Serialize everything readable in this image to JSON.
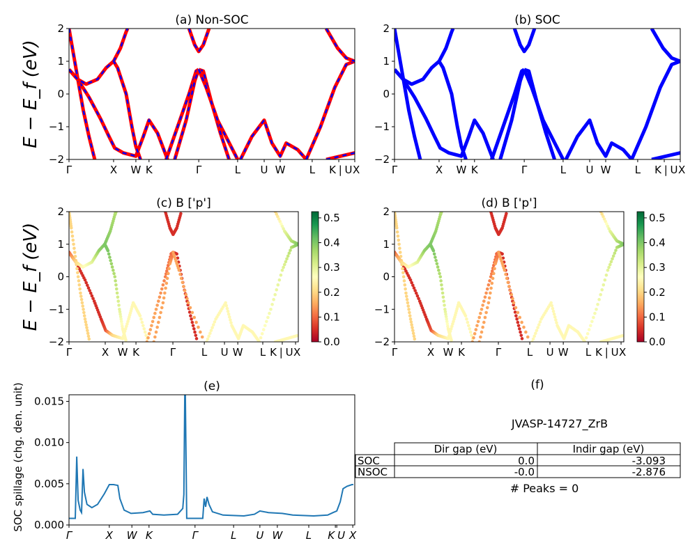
{
  "chart_data": [
    {
      "id": "a",
      "type": "line",
      "title": "(a) Non-SOC",
      "ylabel": "E − E_f (eV)",
      "ylim": [
        -2,
        2
      ],
      "yticks": [
        "−2",
        "−1",
        "0",
        "1",
        "2"
      ],
      "xticks": [
        "Γ",
        "X",
        "W",
        "K",
        "Γ",
        "L",
        "U",
        "W",
        "L",
        "K | U",
        "X"
      ],
      "colors": {
        "line": "#ff0000",
        "dash": "#0000ff"
      },
      "bands_ref": "bands"
    },
    {
      "id": "b",
      "type": "line",
      "title": "(b) SOC",
      "ylim": [
        -2,
        2
      ],
      "yticks": [
        "−2",
        "−1",
        "0",
        "1",
        "2"
      ],
      "xticks": [
        "Γ",
        "X",
        "W",
        "K",
        "Γ",
        "L",
        "U",
        "W",
        "L",
        "K | U",
        "X"
      ],
      "colors": {
        "line": "#0000ff"
      },
      "bands_ref": "bands"
    },
    {
      "id": "c",
      "type": "scatter",
      "title": "(c)  B ['p']",
      "ylabel": "E − E_f (eV)",
      "ylim": [
        -2,
        2
      ],
      "yticks": [
        "−2",
        "−1",
        "0",
        "1",
        "2"
      ],
      "xticks": [
        "Γ",
        "X",
        "W",
        "K",
        "Γ",
        "L",
        "U",
        "W",
        "L",
        "K | U",
        "X"
      ],
      "colormap": "RdYlGn",
      "colorbar": {
        "range": [
          0,
          0.525
        ],
        "ticks": [
          "0.0",
          "0.1",
          "0.2",
          "0.3",
          "0.4",
          "0.5"
        ]
      },
      "bands_ref": "bands"
    },
    {
      "id": "d",
      "type": "scatter",
      "title": "(d) B ['p']",
      "ylim": [
        -2,
        2
      ],
      "yticks": [
        "−2",
        "−1",
        "0",
        "1",
        "2"
      ],
      "xticks": [
        "Γ",
        "X",
        "W",
        "K",
        "Γ",
        "L",
        "U",
        "W",
        "L",
        "K | U",
        "X"
      ],
      "colormap": "RdYlGn",
      "colorbar": {
        "range": [
          0,
          0.525
        ],
        "ticks": [
          "0.0",
          "0.1",
          "0.2",
          "0.3",
          "0.4",
          "0.5"
        ]
      },
      "bands_ref": "bands"
    },
    {
      "id": "e",
      "type": "line",
      "title": "(e)",
      "ylabel": "SOC spillage (chg. den. unit)",
      "ylim": [
        0,
        0.0158
      ],
      "yticks": [
        "0.000",
        "0.005",
        "0.010",
        "0.015"
      ],
      "xticks": [
        "Γ",
        "X",
        "W",
        "K",
        "Γ",
        "L",
        "U",
        "W",
        "L",
        "K",
        "U",
        "X"
      ],
      "colors": {
        "line": "#1f77b4"
      },
      "x": [
        0,
        0.022,
        0.027,
        0.032,
        0.039,
        0.044,
        0.049,
        0.054,
        0.063,
        0.08,
        0.1,
        0.124,
        0.141,
        0.156,
        0.171,
        0.178,
        0.193,
        0.217,
        0.259,
        0.283,
        0.293,
        0.332,
        0.38,
        0.398,
        0.402,
        0.405,
        0.407,
        0.412,
        0.468,
        0.473,
        0.478,
        0.483,
        0.49,
        0.502,
        0.539,
        0.612,
        0.649,
        0.668,
        0.698,
        0.746,
        0.783,
        0.856,
        0.905,
        0.924,
        0.937,
        0.949,
        0.959,
        0.973,
        0.99,
        0.995
      ],
      "y": [
        0.0008,
        0.0008,
        0.0083,
        0.003,
        0.0018,
        0.0015,
        0.0068,
        0.004,
        0.0025,
        0.0021,
        0.0025,
        0.0038,
        0.0049,
        0.0049,
        0.0048,
        0.0032,
        0.0018,
        0.0014,
        0.0015,
        0.0017,
        0.0013,
        0.0012,
        0.0013,
        0.002,
        0.0037,
        0.0158,
        0.0158,
        0.0008,
        0.0008,
        0.0032,
        0.0022,
        0.0034,
        0.0025,
        0.0016,
        0.0012,
        0.0011,
        0.0013,
        0.0017,
        0.0015,
        0.0014,
        0.0012,
        0.0011,
        0.0012,
        0.0015,
        0.0017,
        0.0028,
        0.0044,
        0.0047,
        0.0049,
        0.0049
      ]
    },
    {
      "id": "f",
      "type": "table",
      "title": "(f)",
      "material": "JVASP-14727_ZrB",
      "columns": [
        "Dir gap (eV)",
        "Indir gap (eV)"
      ],
      "rows": [
        {
          "label": "SOC",
          "values": [
            "0.0",
            "-3.093"
          ]
        },
        {
          "label": "NSOC",
          "values": [
            "-0.0",
            "-2.876"
          ]
        }
      ],
      "footer": "# Peaks = 0"
    }
  ],
  "bands": [
    {
      "k": [
        0,
        0.03,
        0.07,
        0.11,
        0.14,
        0.16,
        0.19,
        0.234,
        0.26,
        0.28,
        0.31,
        0.345
      ],
      "E": [
        0.75,
        0.45,
        -0.1,
        -0.75,
        -1.3,
        -1.65,
        -1.8,
        -1.9,
        -1.3,
        -0.8,
        -1.2,
        -2
      ],
      "w": [
        0.05,
        0.05,
        0.05,
        0.05,
        0.05,
        0.08,
        0.2,
        0.25,
        0.25,
        0.25,
        0.25,
        0.25
      ]
    },
    {
      "k": [
        0,
        0.01,
        0.03,
        0.05,
        0.07,
        0.09
      ],
      "E": [
        2,
        1.5,
        0.5,
        -0.5,
        -1.3,
        -2
      ],
      "w": [
        0.2,
        0.2,
        0.2,
        0.2,
        0.2,
        0.2
      ]
    },
    {
      "k": [
        0,
        0.03,
        0.06,
        0.1,
        0.13,
        0.156,
        0.17,
        0.2,
        0.22,
        0.234,
        0.25
      ],
      "E": [
        0.75,
        0.45,
        0.3,
        0.45,
        0.8,
        1.0,
        0.8,
        0,
        -1,
        -1.6,
        -2
      ],
      "w": [
        0.1,
        0.2,
        0.25,
        0.3,
        0.38,
        0.4,
        0.4,
        0.35,
        0.3,
        0.25,
        0.25
      ]
    },
    {
      "k": [
        0.156,
        0.18,
        0.2,
        0.205
      ],
      "E": [
        1.0,
        1.4,
        1.9,
        2
      ],
      "w": [
        0.4,
        0.38,
        0.36,
        0.35
      ]
    },
    {
      "k": [
        0.34,
        0.38,
        0.42,
        0.445,
        0.454
      ],
      "E": [
        -2,
        -1,
        0,
        0.7,
        0.75
      ],
      "w": [
        0.15,
        0.15,
        0.12,
        0.1,
        0.1
      ]
    },
    {
      "k": [
        0.37,
        0.41,
        0.44,
        0.454
      ],
      "E": [
        -2,
        -0.8,
        0.4,
        0.75
      ],
      "w": [
        0.15,
        0.15,
        0.15,
        0.1
      ]
    },
    {
      "k": [
        0.454,
        0.47,
        0.5,
        0.53,
        0.56
      ],
      "E": [
        0.75,
        0.7,
        -0.3,
        -1.2,
        -2
      ],
      "w": [
        0.05,
        0.05,
        0.05,
        0.05,
        0.05
      ]
    },
    {
      "k": [
        0.454,
        0.48,
        0.52,
        0.59
      ],
      "E": [
        0.75,
        0.2,
        -0.8,
        -2
      ],
      "w": [
        0.15,
        0.15,
        0.15,
        0.15
      ]
    },
    {
      "k": [
        0.42,
        0.44,
        0.454,
        0.47,
        0.49
      ],
      "E": [
        2,
        1.5,
        1.3,
        1.5,
        2
      ],
      "w": [
        0.05,
        0.05,
        0.05,
        0.05,
        0.05
      ]
    },
    {
      "k": [
        0.6,
        0.64,
        0.683,
        0.71,
        0.739,
        0.76,
        0.8,
        0.83
      ],
      "E": [
        -2,
        -1.3,
        -0.8,
        -1.5,
        -1.9,
        -1.5,
        -1.7,
        -2
      ],
      "w": [
        0.25,
        0.25,
        0.25,
        0.25,
        0.25,
        0.25,
        0.25,
        0.25
      ]
    },
    {
      "k": [
        0.83,
        0.88,
        0.93,
        0.97,
        1
      ],
      "E": [
        -2,
        -1,
        0.2,
        0.9,
        1.0
      ],
      "w": [
        0.25,
        0.28,
        0.3,
        0.35,
        0.4
      ]
    },
    {
      "k": [
        0.9,
        0.94,
        0.97,
        1
      ],
      "E": [
        2,
        1.4,
        1.1,
        1.0
      ],
      "w": [
        0.2,
        0.3,
        0.35,
        0.4
      ]
    },
    {
      "k": [
        0.9,
        0.95,
        1
      ],
      "E": [
        -2,
        -1.9,
        -1.8
      ],
      "w": [
        0.25,
        0.25,
        0.25
      ]
    }
  ]
}
